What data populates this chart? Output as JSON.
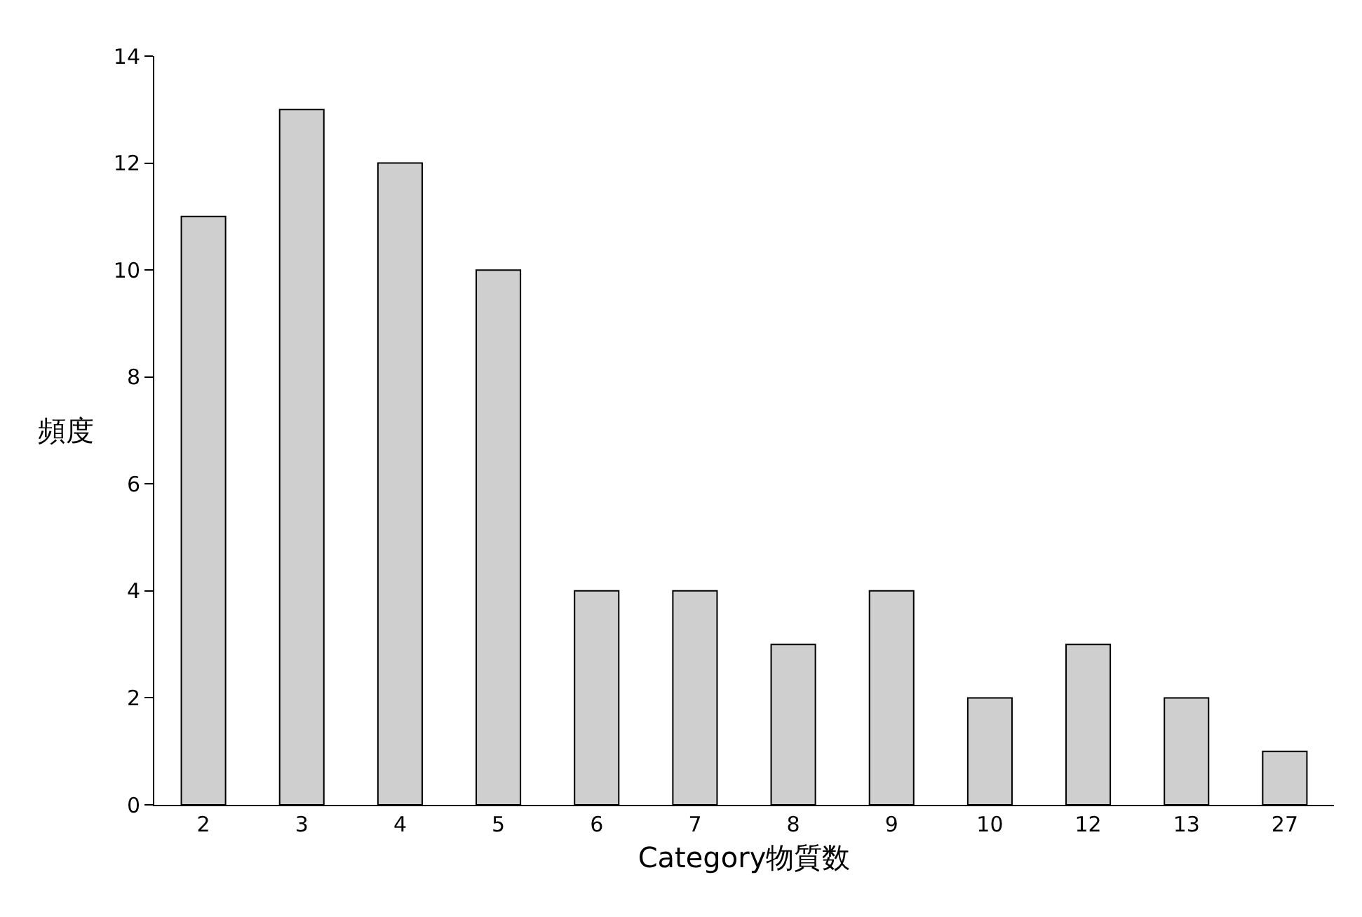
{
  "chart_data": {
    "type": "bar",
    "xlabel": "Category物質数",
    "ylabel": "頻度",
    "categories": [
      "2",
      "3",
      "4",
      "5",
      "6",
      "7",
      "8",
      "9",
      "10",
      "12",
      "13",
      "27"
    ],
    "values": [
      11,
      13,
      12,
      10,
      4,
      4,
      3,
      4,
      2,
      3,
      2,
      1
    ],
    "color": "#cfcfcf",
    "ylim": [
      0,
      14
    ],
    "yticks": [
      0,
      2,
      4,
      6,
      8,
      10,
      12,
      14
    ],
    "grid": false,
    "legend": false
  }
}
